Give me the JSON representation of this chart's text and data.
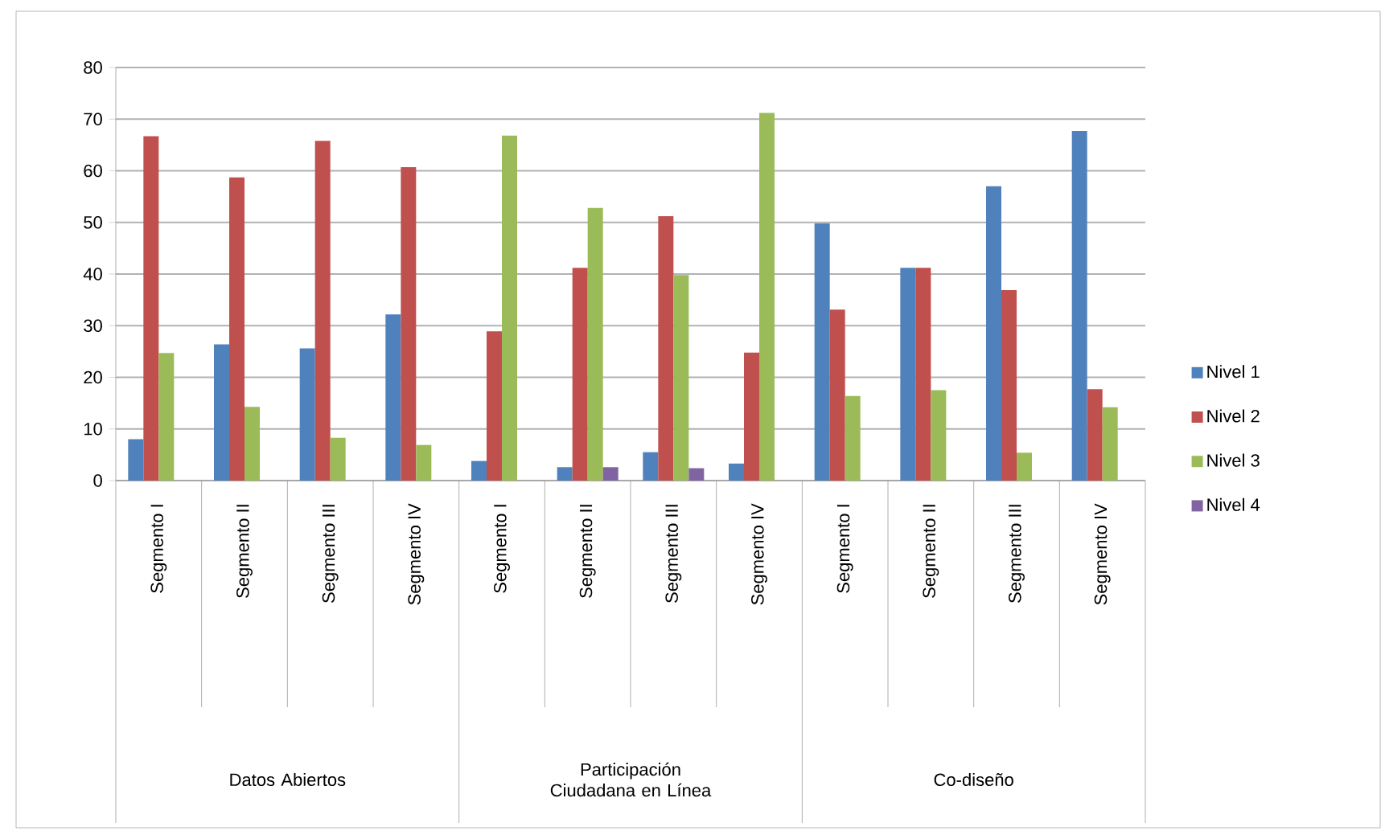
{
  "chart_data": {
    "type": "bar",
    "categories": [
      "Segmento I",
      "Segmento II",
      "Segmento III",
      "Segmento IV",
      "Segmento I",
      "Segmento II",
      "Segmento III",
      "Segmento IV",
      "Segmento I",
      "Segmento II",
      "Segmento III",
      "Segmento IV"
    ],
    "annotations": [
      "Datos Abiertos",
      "Participación Ciudadana en Línea",
      "Co-diseño"
    ],
    "series": [
      {
        "name": "Nivel 1",
        "color": "#4f81bd",
        "values": [
          8,
          26.4,
          25.6,
          32.2,
          3.8,
          2.6,
          5.5,
          3.3,
          49.8,
          41.2,
          57,
          67.7
        ]
      },
      {
        "name": "Nivel 2",
        "color": "#c0504d",
        "values": [
          66.7,
          58.7,
          65.8,
          60.7,
          28.9,
          41.2,
          51.2,
          24.8,
          33.1,
          41.2,
          36.9,
          17.7
        ]
      },
      {
        "name": "Nivel 3",
        "color": "#9bbb59",
        "values": [
          24.7,
          14.3,
          8.3,
          6.9,
          66.8,
          52.8,
          39.8,
          71.2,
          16.4,
          17.5,
          5.4,
          14.2
        ]
      },
      {
        "name": "Nivel 4",
        "color": "#8064a2",
        "values": [
          null,
          null,
          null,
          null,
          null,
          2.6,
          2.4,
          null,
          null,
          null,
          null,
          null
        ]
      }
    ],
    "ylim": [
      0,
      80
    ],
    "yticks": [
      0,
      10,
      20,
      30,
      40,
      50,
      60,
      70,
      80
    ],
    "grid": "y",
    "legend": "right"
  }
}
